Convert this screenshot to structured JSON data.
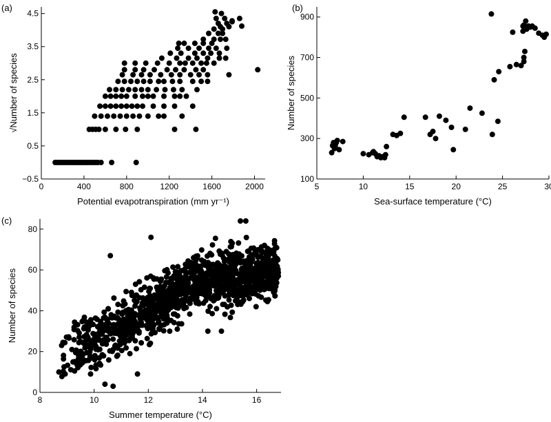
{
  "chart_data": [
    {
      "id": "a",
      "panel_label": "(a)",
      "type": "scatter",
      "xlabel": "Potential evapotranspiration (mm yr⁻¹)",
      "ylabel": "√Number of species",
      "xlim": [
        0,
        2100
      ],
      "ylim": [
        -0.5,
        4.7
      ],
      "xticks": [
        0,
        400,
        800,
        1200,
        1600,
        2000
      ],
      "xtick_labels": [
        "0",
        "400",
        "800",
        "1200",
        "1600",
        "2000"
      ],
      "yticks": [
        -0.5,
        0.5,
        1.5,
        2.5,
        3.5,
        4.5
      ],
      "ytick_labels": [
        "−0.5",
        "0.5",
        "1.5",
        "2.5",
        "3.5",
        "4.5"
      ],
      "points": [
        [
          130,
          0
        ],
        [
          150,
          0
        ],
        [
          170,
          0
        ],
        [
          190,
          0
        ],
        [
          210,
          0
        ],
        [
          230,
          0
        ],
        [
          250,
          0
        ],
        [
          270,
          0
        ],
        [
          290,
          0
        ],
        [
          310,
          0
        ],
        [
          330,
          0
        ],
        [
          350,
          0
        ],
        [
          370,
          0
        ],
        [
          390,
          0
        ],
        [
          410,
          0
        ],
        [
          430,
          0
        ],
        [
          450,
          0
        ],
        [
          470,
          0
        ],
        [
          490,
          0
        ],
        [
          510,
          0
        ],
        [
          530,
          0
        ],
        [
          560,
          0
        ],
        [
          660,
          0
        ],
        [
          890,
          0
        ],
        [
          450,
          1
        ],
        [
          480,
          1
        ],
        [
          510,
          1
        ],
        [
          540,
          1
        ],
        [
          600,
          1
        ],
        [
          700,
          1
        ],
        [
          790,
          1
        ],
        [
          900,
          1
        ],
        [
          1250,
          1
        ],
        [
          1450,
          1
        ],
        [
          500,
          1.4
        ],
        [
          560,
          1.4
        ],
        [
          620,
          1.4
        ],
        [
          680,
          1.4
        ],
        [
          740,
          1.4
        ],
        [
          800,
          1.4
        ],
        [
          860,
          1.4
        ],
        [
          920,
          1.4
        ],
        [
          1000,
          1.4
        ],
        [
          1100,
          1.4
        ],
        [
          1150,
          1.4
        ],
        [
          1320,
          1.4
        ],
        [
          550,
          1.7
        ],
        [
          600,
          1.7
        ],
        [
          650,
          1.7
        ],
        [
          700,
          1.7
        ],
        [
          750,
          1.7
        ],
        [
          800,
          1.7
        ],
        [
          850,
          1.7
        ],
        [
          900,
          1.7
        ],
        [
          950,
          1.7
        ],
        [
          1050,
          1.7
        ],
        [
          1150,
          1.7
        ],
        [
          1250,
          1.7
        ],
        [
          1420,
          1.7
        ],
        [
          600,
          2
        ],
        [
          650,
          2
        ],
        [
          700,
          2
        ],
        [
          750,
          2
        ],
        [
          800,
          2
        ],
        [
          880,
          2
        ],
        [
          950,
          2
        ],
        [
          1000,
          2
        ],
        [
          1050,
          2
        ],
        [
          1150,
          2
        ],
        [
          1250,
          2
        ],
        [
          1300,
          2
        ],
        [
          1360,
          2
        ],
        [
          640,
          2.2
        ],
        [
          700,
          2.2
        ],
        [
          760,
          2.2
        ],
        [
          820,
          2.2
        ],
        [
          880,
          2.2
        ],
        [
          940,
          2.2
        ],
        [
          1000,
          2.2
        ],
        [
          1080,
          2.2
        ],
        [
          1160,
          2.2
        ],
        [
          1240,
          2.2
        ],
        [
          1320,
          2.2
        ],
        [
          1460,
          2.2
        ],
        [
          720,
          2.45
        ],
        [
          780,
          2.45
        ],
        [
          840,
          2.45
        ],
        [
          900,
          2.45
        ],
        [
          960,
          2.45
        ],
        [
          1020,
          2.45
        ],
        [
          1100,
          2.45
        ],
        [
          1150,
          2.45
        ],
        [
          1230,
          2.45
        ],
        [
          1300,
          2.45
        ],
        [
          1420,
          2.45
        ],
        [
          1500,
          2.45
        ],
        [
          1560,
          2.45
        ],
        [
          760,
          2.65
        ],
        [
          860,
          2.65
        ],
        [
          940,
          2.65
        ],
        [
          1020,
          2.65
        ],
        [
          1120,
          2.65
        ],
        [
          1220,
          2.65
        ],
        [
          1300,
          2.65
        ],
        [
          1400,
          2.65
        ],
        [
          1480,
          2.65
        ],
        [
          1560,
          2.65
        ],
        [
          1760,
          2.65
        ],
        [
          780,
          2.8
        ],
        [
          880,
          2.8
        ],
        [
          960,
          2.8
        ],
        [
          1060,
          2.8
        ],
        [
          1180,
          2.8
        ],
        [
          1260,
          2.8
        ],
        [
          1340,
          2.8
        ],
        [
          1450,
          2.8
        ],
        [
          1520,
          2.8
        ],
        [
          2030,
          2.8
        ],
        [
          780,
          3
        ],
        [
          880,
          3
        ],
        [
          980,
          3
        ],
        [
          1090,
          3
        ],
        [
          1200,
          3
        ],
        [
          1300,
          3
        ],
        [
          1350,
          3
        ],
        [
          1420,
          3
        ],
        [
          1500,
          3
        ],
        [
          1550,
          3
        ],
        [
          1620,
          3
        ],
        [
          1130,
          3.15
        ],
        [
          1270,
          3.15
        ],
        [
          1380,
          3.15
        ],
        [
          1460,
          3.15
        ],
        [
          1560,
          3.15
        ],
        [
          1670,
          3.15
        ],
        [
          1730,
          3.15
        ],
        [
          1210,
          3.3
        ],
        [
          1310,
          3.3
        ],
        [
          1440,
          3.3
        ],
        [
          1520,
          3.3
        ],
        [
          1590,
          3.3
        ],
        [
          1670,
          3.3
        ],
        [
          1280,
          3.45
        ],
        [
          1380,
          3.45
        ],
        [
          1480,
          3.45
        ],
        [
          1570,
          3.45
        ],
        [
          1640,
          3.45
        ],
        [
          1740,
          3.45
        ],
        [
          1290,
          3.6
        ],
        [
          1340,
          3.6
        ],
        [
          1440,
          3.6
        ],
        [
          1520,
          3.6
        ],
        [
          1600,
          3.6
        ],
        [
          1520,
          3.72
        ],
        [
          1620,
          3.72
        ],
        [
          1680,
          3.72
        ],
        [
          1730,
          3.72
        ],
        [
          1570,
          3.9
        ],
        [
          1660,
          3.9
        ],
        [
          1700,
          3.9
        ],
        [
          1620,
          4.03
        ],
        [
          1700,
          4.03
        ],
        [
          1660,
          4.2
        ],
        [
          1740,
          4.2
        ],
        [
          1790,
          4.25
        ],
        [
          1640,
          4.35
        ],
        [
          1720,
          4.35
        ],
        [
          1860,
          4.35
        ],
        [
          1790,
          4.28
        ],
        [
          1880,
          4.12
        ],
        [
          1680,
          4.1
        ],
        [
          1760,
          4.1
        ],
        [
          1630,
          4.55
        ],
        [
          1690,
          4.5
        ]
      ]
    },
    {
      "id": "b",
      "panel_label": "(b)",
      "type": "scatter",
      "xlabel": "Sea-surface temperature (°C)",
      "ylabel": "Number of species",
      "xlim": [
        5,
        30
      ],
      "ylim": [
        100,
        950
      ],
      "xticks": [
        5,
        10,
        15,
        20,
        25,
        30
      ],
      "xtick_labels": [
        "5",
        "10",
        "15",
        "20",
        "25",
        "30"
      ],
      "yticks": [
        100,
        300,
        500,
        700,
        900
      ],
      "ytick_labels": [
        "100",
        "300",
        "500",
        "700",
        "900"
      ],
      "points": [
        [
          6.6,
          230
        ],
        [
          6.7,
          265
        ],
        [
          6.8,
          280
        ],
        [
          7,
          255
        ],
        [
          7.1,
          280
        ],
        [
          7.2,
          290
        ],
        [
          7.4,
          245
        ],
        [
          7.8,
          285
        ],
        [
          7,
          270
        ],
        [
          6.9,
          250
        ],
        [
          10,
          225
        ],
        [
          10.6,
          220
        ],
        [
          11,
          230
        ],
        [
          11.3,
          225
        ],
        [
          11.5,
          210
        ],
        [
          11.7,
          215
        ],
        [
          11.9,
          205
        ],
        [
          12.1,
          210
        ],
        [
          12.4,
          220
        ],
        [
          12.5,
          260
        ],
        [
          12.3,
          205
        ],
        [
          11.1,
          235
        ],
        [
          13.2,
          320
        ],
        [
          13.6,
          315
        ],
        [
          14,
          325
        ],
        [
          14.4,
          405
        ],
        [
          16.7,
          405
        ],
        [
          17.2,
          320
        ],
        [
          17.5,
          335
        ],
        [
          17.8,
          300
        ],
        [
          18.2,
          410
        ],
        [
          18.9,
          390
        ],
        [
          19.5,
          355
        ],
        [
          19.7,
          245
        ],
        [
          21,
          345
        ],
        [
          21.5,
          450
        ],
        [
          22.8,
          425
        ],
        [
          23.9,
          320
        ],
        [
          24.5,
          385
        ],
        [
          23.8,
          915
        ],
        [
          24.1,
          590
        ],
        [
          24.6,
          630
        ],
        [
          25.8,
          655
        ],
        [
          26.1,
          825
        ],
        [
          26.5,
          665
        ],
        [
          27,
          660
        ],
        [
          27.3,
          700
        ],
        [
          27.4,
          730
        ],
        [
          27.3,
          680
        ],
        [
          27.2,
          830
        ],
        [
          27.3,
          860
        ],
        [
          27.5,
          880
        ],
        [
          27.6,
          840
        ],
        [
          27.8,
          855
        ],
        [
          28,
          850
        ],
        [
          28.2,
          855
        ],
        [
          28.5,
          845
        ],
        [
          28.9,
          820
        ],
        [
          29.3,
          810
        ],
        [
          29.5,
          800
        ],
        [
          29.7,
          815
        ],
        [
          27.2,
          855
        ],
        [
          27.6,
          850
        ]
      ]
    },
    {
      "id": "c",
      "panel_label": "(c)",
      "type": "scatter",
      "xlabel": "Summer temperature (°C)",
      "ylabel": "Number of species",
      "xlim": [
        8,
        16.9
      ],
      "ylim": [
        0,
        85
      ],
      "xticks": [
        8,
        10,
        12,
        14,
        16
      ],
      "xtick_labels": [
        "8",
        "10",
        "12",
        "14",
        "16"
      ],
      "yticks": [
        0,
        20,
        40,
        60,
        80
      ],
      "ytick_labels": [
        "0",
        "20",
        "40",
        "60",
        "80"
      ],
      "generated_points": {
        "count": 1300,
        "x_range": [
          8.7,
          16.8
        ],
        "trend": "species increase with temperature, levelling off above 14 °C",
        "extreme_points": [
          [
            8.7,
            10
          ],
          [
            8.8,
            23
          ],
          [
            10.4,
            4
          ],
          [
            10.7,
            3
          ],
          [
            10.6,
            67
          ],
          [
            11.6,
            9
          ],
          [
            12.1,
            76
          ],
          [
            14.2,
            30
          ],
          [
            14.7,
            30
          ],
          [
            15.4,
            84
          ],
          [
            15.6,
            84
          ],
          [
            16.8,
            57
          ]
        ]
      }
    }
  ]
}
